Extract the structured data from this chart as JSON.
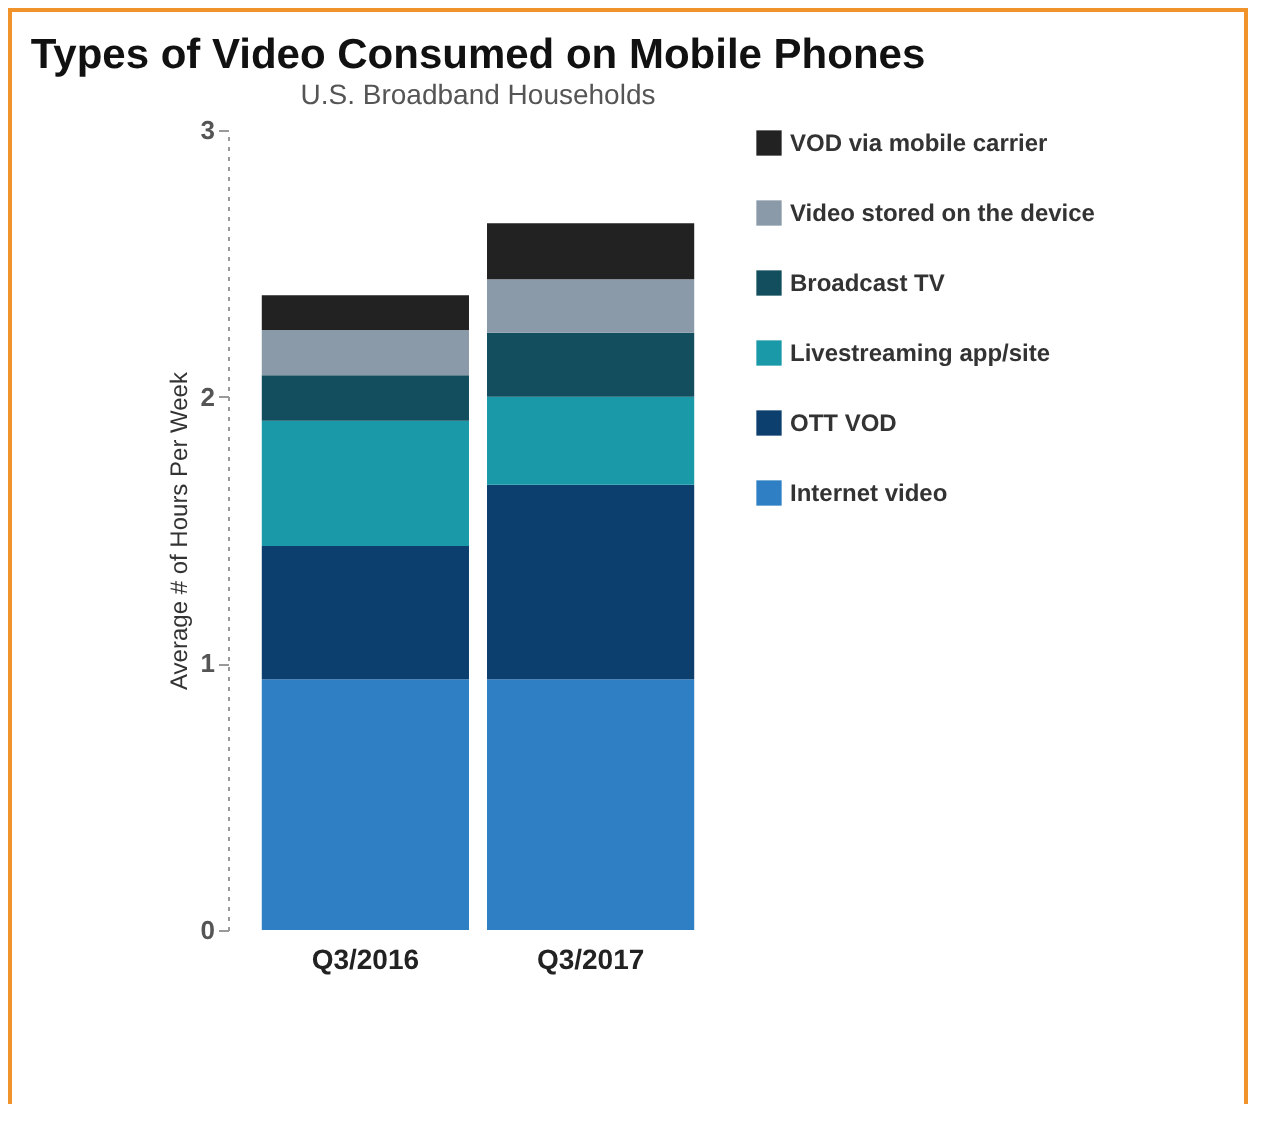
{
  "chart_data": {
    "type": "bar",
    "title": "Types of Video Consumed on Mobile Phones",
    "subtitle": "U.S. Broadband Households",
    "ylabel": "Average # of Hours Per Week",
    "categories": [
      "Q3/2016",
      "Q3/2017"
    ],
    "stacked": true,
    "ylim": [
      0,
      3
    ],
    "yticks": [
      0,
      1,
      2,
      3
    ],
    "grid": false,
    "legend": "right",
    "series": [
      {
        "name": "Internet video",
        "color": "#2e7fc4",
        "values": [
          0.94,
          0.94
        ]
      },
      {
        "name": "OTT VOD",
        "color": "#0d3f6e",
        "values": [
          0.5,
          0.73
        ]
      },
      {
        "name": "Livestreaming app/site",
        "color": "#1a9aa8",
        "values": [
          0.47,
          0.33
        ]
      },
      {
        "name": "Broadcast TV",
        "color": "#134e5e",
        "values": [
          0.17,
          0.24
        ]
      },
      {
        "name": "Video stored on the device",
        "color": "#8a9aa8",
        "values": [
          0.17,
          0.2
        ]
      },
      {
        "name": "VOD via mobile carrier",
        "color": "#222222",
        "values": [
          0.13,
          0.21
        ]
      }
    ]
  }
}
